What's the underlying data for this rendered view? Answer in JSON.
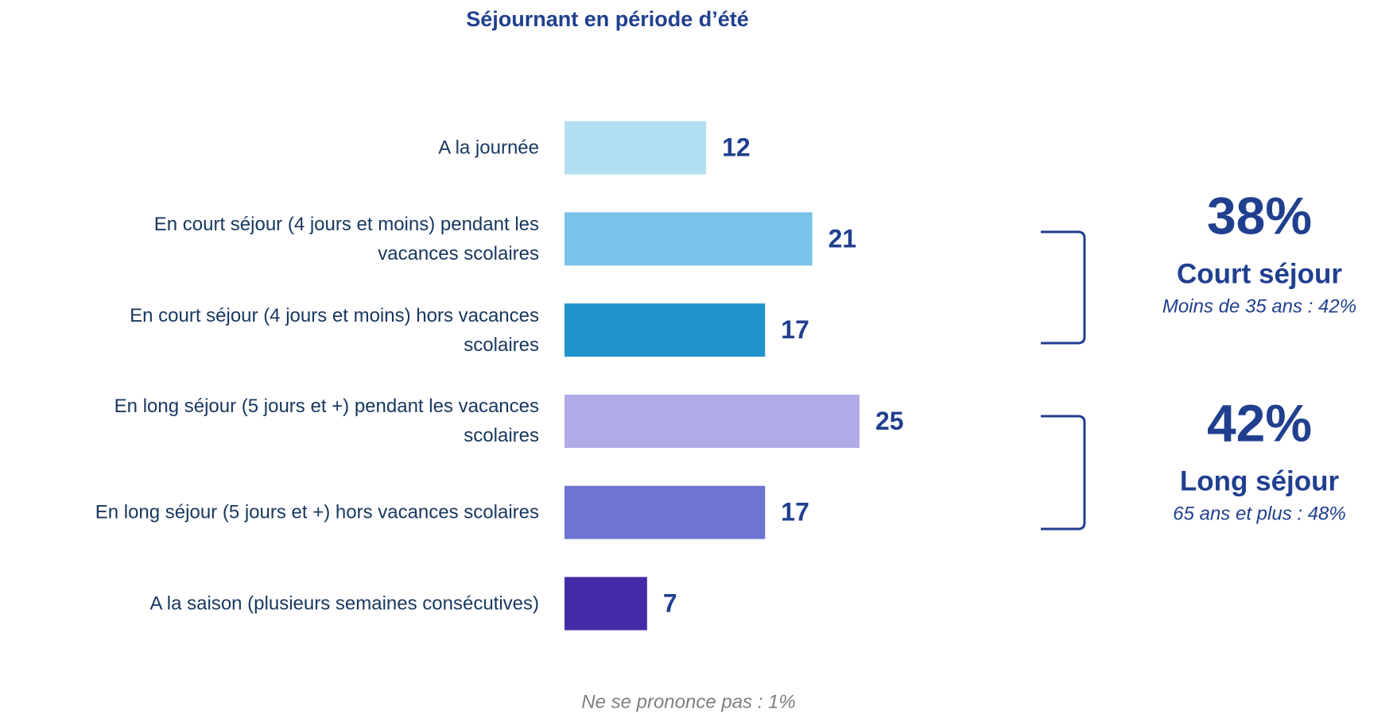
{
  "chart_data": {
    "type": "bar",
    "orientation": "horizontal",
    "title": "Séjournant en période d’été",
    "categories": [
      "A la journée",
      "En court séjour (4 jours et moins) pendant les\nvacances scolaires",
      "En court séjour (4 jours et moins) hors vacances\nscolaires",
      "En long séjour (5 jours et +) pendant les vacances\nscolaires",
      "En long séjour (5 jours et +) hors vacances scolaires",
      "A la saison (plusieurs semaines consécutives)"
    ],
    "values": [
      12,
      21,
      17,
      25,
      17,
      7
    ],
    "colors": [
      "#b3dff3",
      "#7bc3ea",
      "#2193cc",
      "#b1abe8",
      "#6e74d2",
      "#432ba8"
    ],
    "annotations": [
      {
        "title": "38%",
        "label": "Court séjour",
        "note": "Moins de 35 ans : 42%"
      },
      {
        "title": "42%",
        "label": "Long séjour",
        "note": "65 ans et plus : 48%"
      }
    ],
    "footnote": "Ne se prononce pas : 1%"
  }
}
